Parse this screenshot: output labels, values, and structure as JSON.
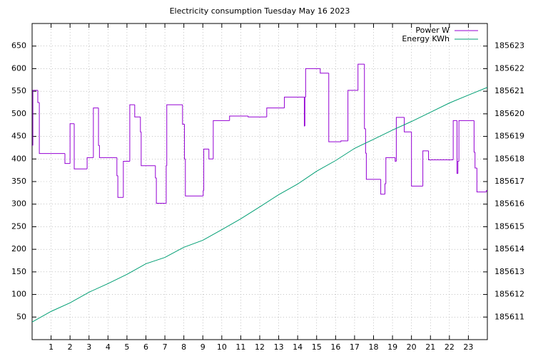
{
  "chart_data": {
    "type": "line",
    "title": "Electricity consumption Tuesday May 16 2023",
    "xlim": [
      0,
      24
    ],
    "xticks": [
      1,
      2,
      3,
      4,
      5,
      6,
      7,
      8,
      9,
      10,
      11,
      12,
      13,
      14,
      15,
      16,
      17,
      18,
      19,
      20,
      21,
      22,
      23
    ],
    "ylim": [
      0,
      700
    ],
    "yticks": [
      50,
      100,
      150,
      200,
      250,
      300,
      350,
      400,
      450,
      500,
      550,
      600,
      650
    ],
    "y2lim": [
      185610,
      185624
    ],
    "y2ticks": [
      185611,
      185612,
      185613,
      185614,
      185615,
      185616,
      185617,
      185618,
      185619,
      185620,
      185621,
      185622,
      185623
    ],
    "grid": true,
    "legend": "top-right",
    "series": [
      {
        "name": "Power W",
        "color": "#9400d3",
        "step": true,
        "x": [
          0,
          0.04,
          0.3,
          0.38,
          1.73,
          2.0,
          2.22,
          2.9,
          3.23,
          3.5,
          3.55,
          4.47,
          4.52,
          4.81,
          5.15,
          5.41,
          5.71,
          5.75,
          6.5,
          6.55,
          7.07,
          7.1,
          7.93,
          8.03,
          8.08,
          9.02,
          9.05,
          9.32,
          9.55,
          10.41,
          11.39,
          12.37,
          13.3,
          14.35,
          14.38,
          14.42,
          15.19,
          15.64,
          16.28,
          16.65,
          17.18,
          17.52,
          17.58,
          17.62,
          18.38,
          18.6,
          18.65,
          19.14,
          19.2,
          19.62,
          20.0,
          20.6,
          20.9,
          22.2,
          22.4,
          22.45,
          22.5,
          23.3,
          23.35,
          23.45,
          23.95
        ],
        "values": [
          430,
          552,
          525,
          412,
          390,
          478,
          378,
          403,
          513,
          430,
          403,
          363,
          315,
          395,
          520,
          493,
          460,
          385,
          358,
          302,
          385,
          520,
          477,
          400,
          318,
          330,
          422,
          400,
          485,
          495,
          493,
          513,
          537,
          473,
          537,
          600,
          590,
          438,
          440,
          552,
          610,
          467,
          413,
          355,
          322,
          345,
          403,
          395,
          492,
          460,
          340,
          418,
          398,
          485,
          368,
          395,
          485,
          415,
          380,
          327,
          330
        ]
      },
      {
        "name": "Energy KWh",
        "color": "#009e73",
        "axis": "y2",
        "x": [
          0,
          1,
          2,
          3,
          4,
          5,
          6,
          7,
          8,
          9,
          10,
          11,
          12,
          13,
          14,
          15,
          16,
          17,
          18,
          19,
          20,
          21,
          22,
          23,
          24
        ],
        "values": [
          185610.78,
          185611.25,
          185611.63,
          185612.1,
          185612.48,
          185612.89,
          185613.36,
          185613.64,
          185614.09,
          185614.4,
          185614.87,
          185615.35,
          185615.88,
          185616.42,
          185616.89,
          185617.46,
          185617.93,
          185618.47,
          185618.87,
          185619.28,
          185619.66,
          185620.07,
          185620.48,
          185620.83,
          185621.17
        ]
      }
    ]
  }
}
